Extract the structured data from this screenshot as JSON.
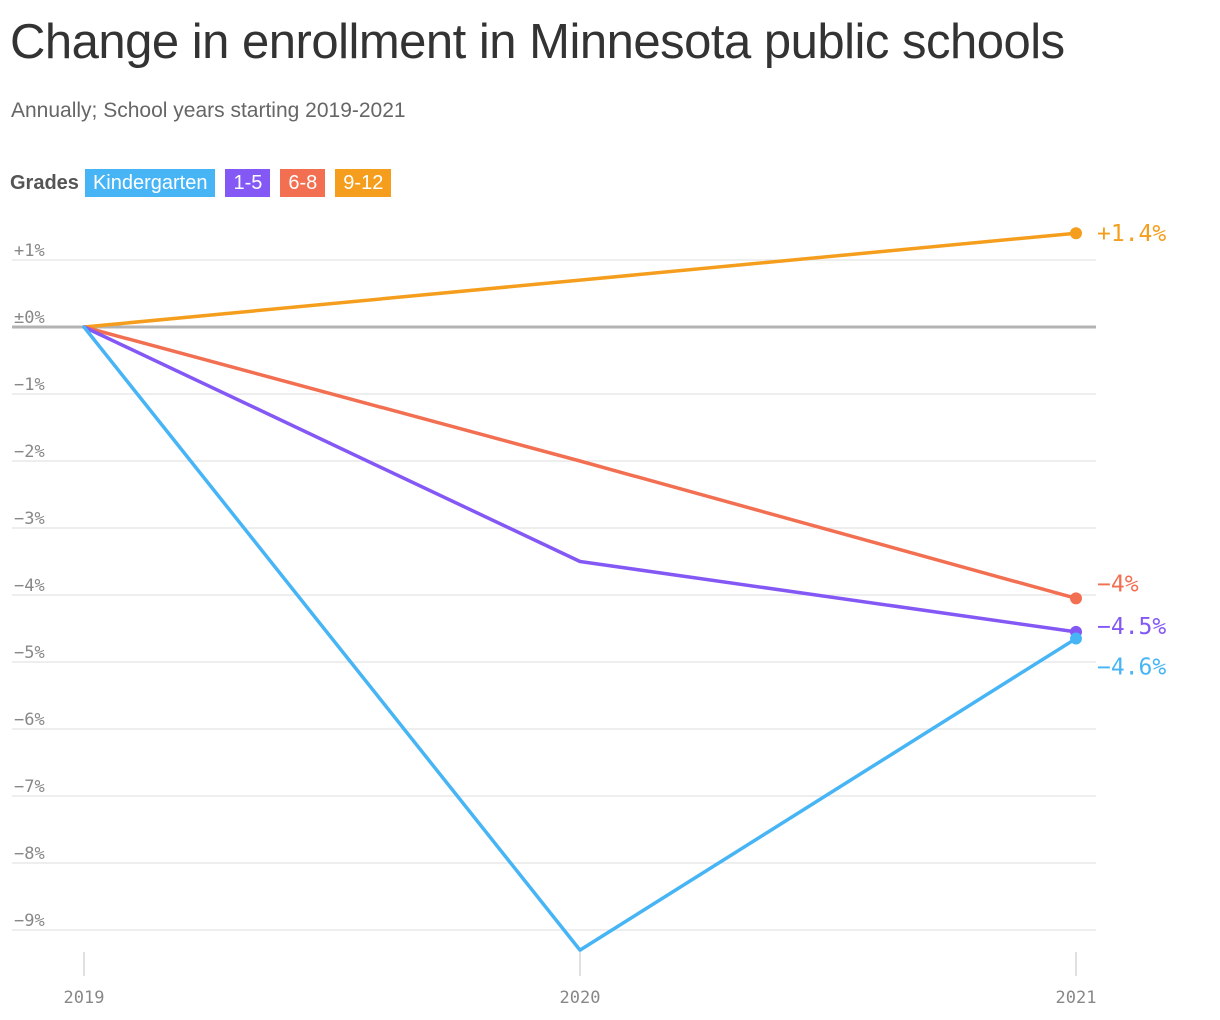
{
  "title": "Change in enrollment in Minnesota public schools",
  "subtitle": "Annually; School years starting 2019-2021",
  "legend": {
    "title": "Grades",
    "items": [
      {
        "label": "Kindergarten",
        "color": "#47b5f5"
      },
      {
        "label": "1-5",
        "color": "#8458f5"
      },
      {
        "label": "6-8",
        "color": "#f26f52"
      },
      {
        "label": "9-12",
        "color": "#f59e1d"
      }
    ]
  },
  "chart_data": {
    "type": "line",
    "title": "Change in enrollment in Minnesota public schools",
    "x": [
      "2019",
      "2020",
      "2021"
    ],
    "x_tick_labels": [
      "2019",
      "2020",
      "2021"
    ],
    "ylim": [
      -9.3,
      1.4
    ],
    "y_ticks": [
      1,
      0,
      -1,
      -2,
      -3,
      -4,
      -5,
      -6,
      -7,
      -8,
      -9
    ],
    "y_tick_labels": [
      "+1%",
      "±0%",
      "−1%",
      "−2%",
      "−3%",
      "−4%",
      "−5%",
      "−6%",
      "−7%",
      "−8%",
      "−9%"
    ],
    "grid": true,
    "legend_position": "top-left",
    "series": [
      {
        "name": "9-12",
        "color": "#f59e1d",
        "values": [
          0,
          0.7,
          1.4
        ],
        "end_label": "+1.4%"
      },
      {
        "name": "6-8",
        "color": "#f26f52",
        "values": [
          0,
          -2.0,
          -4.05
        ],
        "end_label": "−4%"
      },
      {
        "name": "1-5",
        "color": "#8458f5",
        "values": [
          0,
          -3.5,
          -4.55
        ],
        "end_label": "−4.5%"
      },
      {
        "name": "Kindergarten",
        "color": "#47b5f5",
        "values": [
          0,
          -9.3,
          -4.65
        ],
        "end_label": "−4.6%"
      }
    ]
  }
}
